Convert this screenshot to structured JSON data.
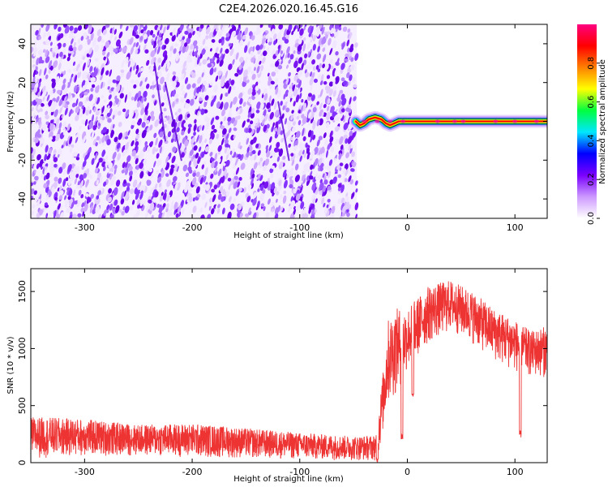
{
  "title": "C2E4.2026.020.16.45.G16",
  "chart_data": [
    {
      "type": "heatmap",
      "title": "C2E4.2026.020.16.45.G16",
      "xlabel": "Height of straight line (km)",
      "ylabel": "Frequency (Hz)",
      "xlim": [
        -350,
        130
      ],
      "ylim": [
        -50,
        50
      ],
      "xticks": [
        -300,
        -200,
        -100,
        0,
        100
      ],
      "yticks": [
        -40,
        -20,
        0,
        20,
        40
      ],
      "colorbar": {
        "label": "Normalized spectral amplitude",
        "range": [
          0,
          1
        ],
        "ticks": [
          "0.0",
          "0.2",
          "0.4",
          "0.6",
          "0.8"
        ],
        "colors": [
          "#ffffff",
          "#cc99ff",
          "#7a00ff",
          "#0000ff",
          "#00e6ff",
          "#00ff40",
          "#ffff00",
          "#ff8000",
          "#ff0000",
          "#ff0080"
        ]
      },
      "noise_region_x": [
        -350,
        -47
      ],
      "signal_x": [
        -48,
        130
      ],
      "signal_frequency_hz": 0,
      "signal_trace": [
        {
          "x": -48,
          "y": 0
        },
        {
          "x": -44,
          "y": -2
        },
        {
          "x": -40,
          "y": -1
        },
        {
          "x": -36,
          "y": 1
        },
        {
          "x": -30,
          "y": 2
        },
        {
          "x": -24,
          "y": 1
        },
        {
          "x": -20,
          "y": -1
        },
        {
          "x": -16,
          "y": -2
        },
        {
          "x": -12,
          "y": -1
        },
        {
          "x": -8,
          "y": 0
        },
        {
          "x": 0,
          "y": 0
        },
        {
          "x": 130,
          "y": 0
        }
      ],
      "grid": false
    },
    {
      "type": "line",
      "xlabel": "Height of straight line (km)",
      "ylabel": "SNR (10 * v/v)",
      "xlim": [
        -350,
        130
      ],
      "ylim": [
        0,
        1700
      ],
      "xticks": [
        -300,
        -200,
        -100,
        0,
        100
      ],
      "yticks": [
        0,
        500,
        1000,
        1500
      ],
      "color": "#ee3333",
      "envelope": [
        {
          "x": -350,
          "lo": 40,
          "hi": 400
        },
        {
          "x": -300,
          "lo": 60,
          "hi": 380
        },
        {
          "x": -250,
          "lo": 60,
          "hi": 330
        },
        {
          "x": -200,
          "lo": 50,
          "hi": 340
        },
        {
          "x": -150,
          "lo": 40,
          "hi": 300
        },
        {
          "x": -100,
          "lo": 30,
          "hi": 260
        },
        {
          "x": -50,
          "lo": 20,
          "hi": 230
        },
        {
          "x": -28,
          "lo": 20,
          "hi": 240
        },
        {
          "x": -26,
          "lo": 100,
          "hi": 500
        },
        {
          "x": -22,
          "lo": 300,
          "hi": 850
        },
        {
          "x": -18,
          "lo": 500,
          "hi": 1250
        },
        {
          "x": -10,
          "lo": 600,
          "hi": 1350
        },
        {
          "x": 0,
          "lo": 800,
          "hi": 1350
        },
        {
          "x": 20,
          "lo": 1050,
          "hi": 1550
        },
        {
          "x": 40,
          "lo": 1150,
          "hi": 1600
        },
        {
          "x": 60,
          "lo": 1050,
          "hi": 1500
        },
        {
          "x": 80,
          "lo": 900,
          "hi": 1350
        },
        {
          "x": 100,
          "lo": 800,
          "hi": 1250
        },
        {
          "x": 115,
          "lo": 750,
          "hi": 1150
        },
        {
          "x": 130,
          "lo": 750,
          "hi": 1200
        }
      ],
      "dips": [
        {
          "x": -28,
          "y": 0
        },
        {
          "x": -5,
          "y": 200
        },
        {
          "x": 5,
          "y": 550
        },
        {
          "x": 105,
          "y": 220
        }
      ],
      "grid": false
    }
  ]
}
